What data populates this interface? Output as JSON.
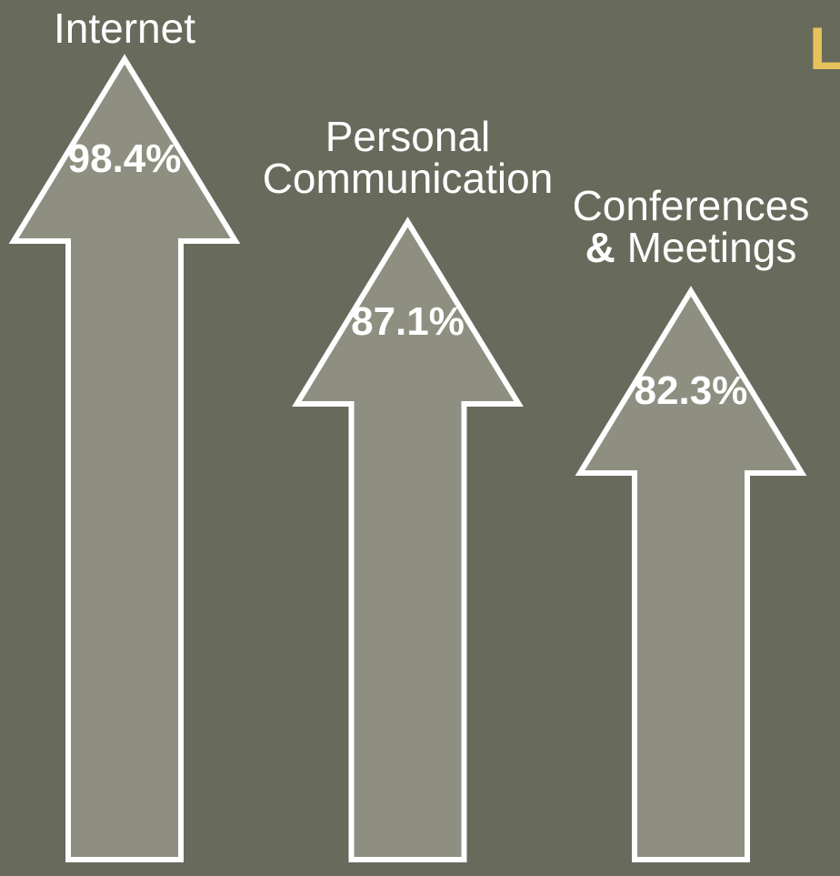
{
  "chart_data": {
    "type": "arrow",
    "title": "L",
    "categories": [
      "Internet",
      "Personal Communication",
      "Conferences & Meetings"
    ],
    "values": [
      98.4,
      87.1,
      82.3
    ],
    "value_labels": [
      "98.4%",
      "87.1%",
      "82.3%"
    ],
    "color": "#8e8f80"
  }
}
